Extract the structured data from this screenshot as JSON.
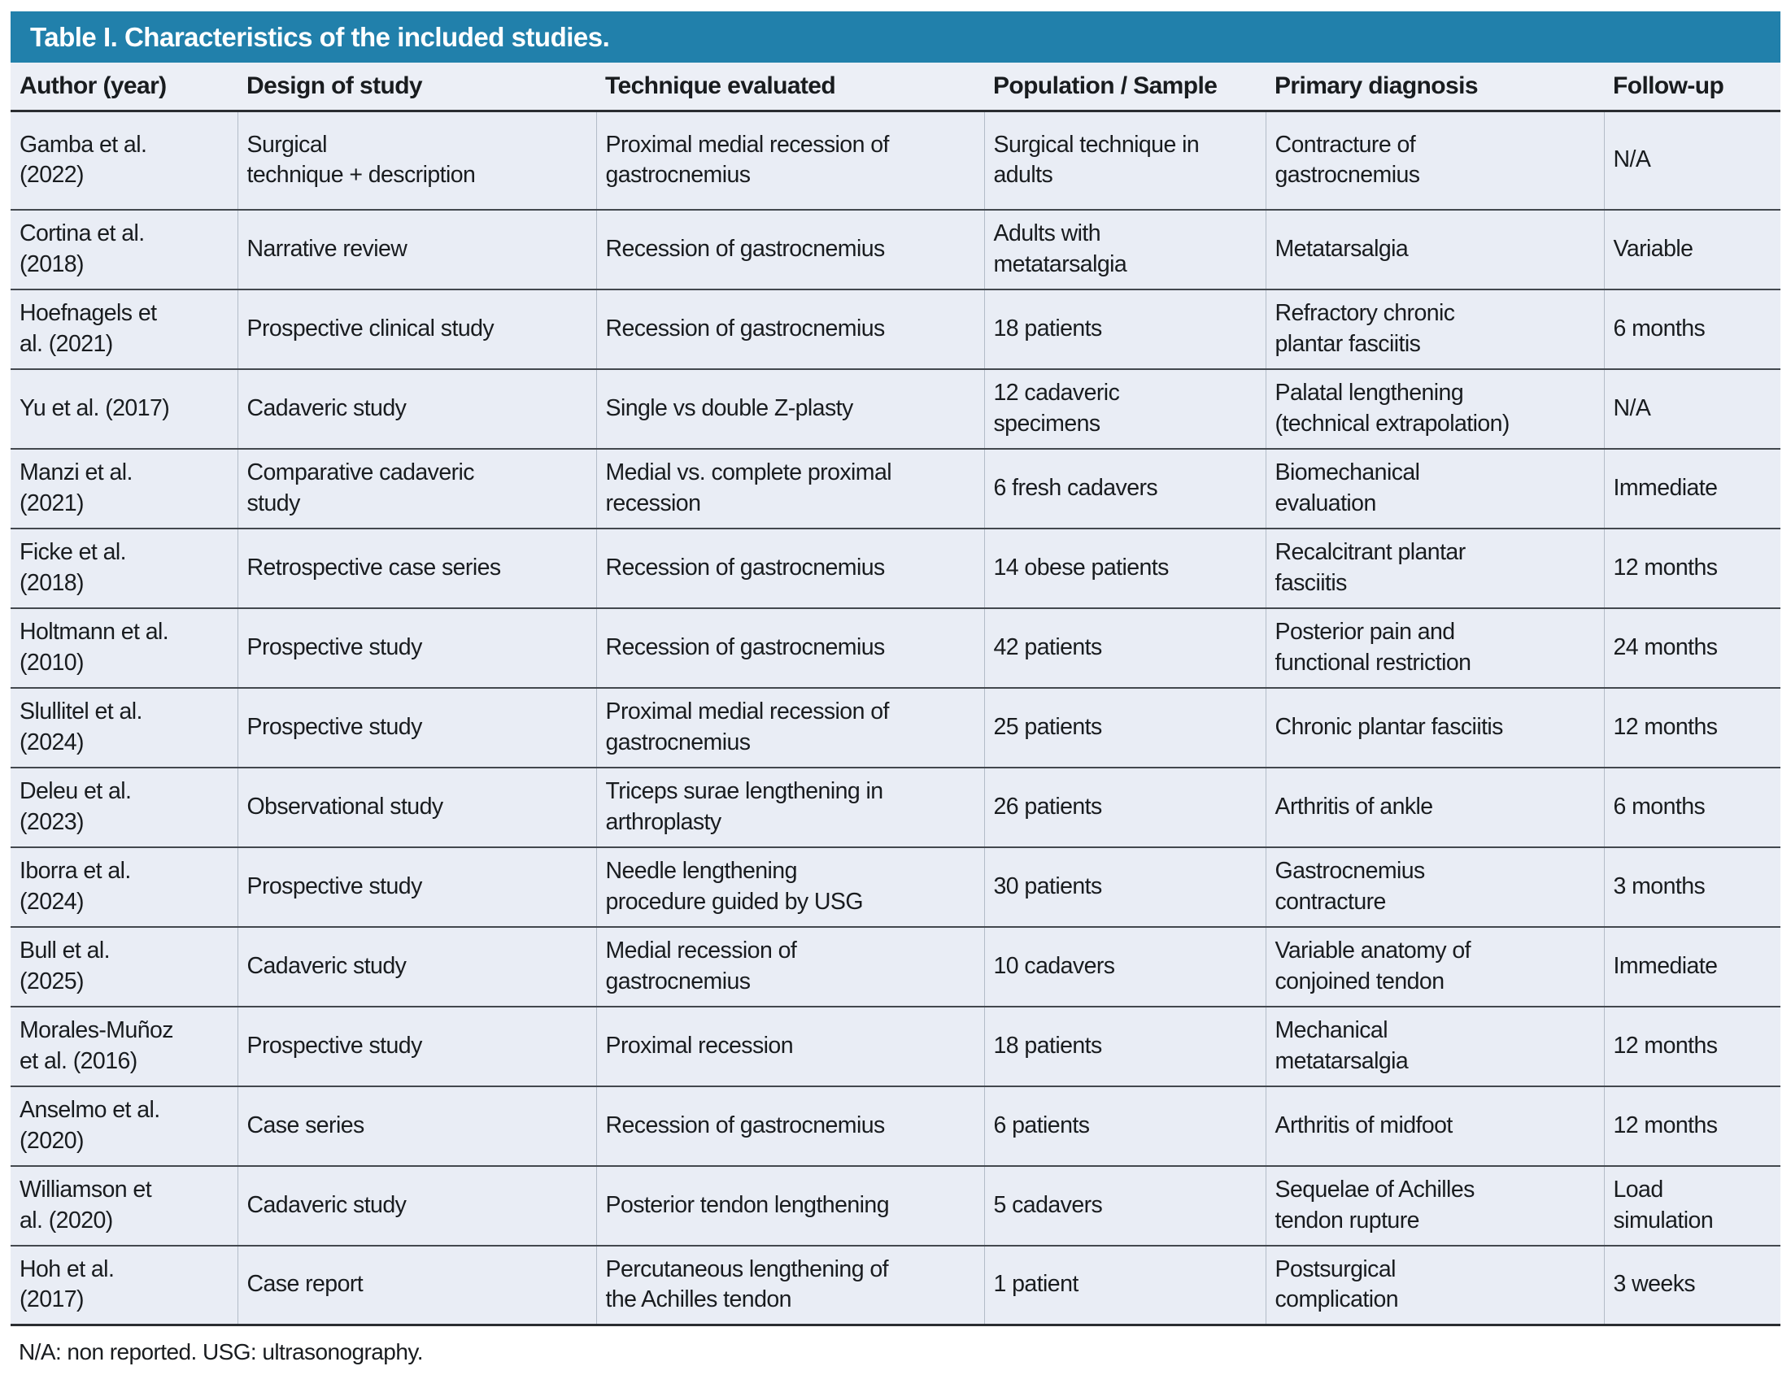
{
  "title": "Table I. Characteristics of the included studies.",
  "footnote": "N/A: non reported. USG: ultrasonography.",
  "colors": {
    "accent": "#2180ab",
    "header_bg": "#eceff6",
    "row_bg": "#e9edf5",
    "title_text": "#ffffff",
    "body_text": "#191c1f"
  },
  "table": {
    "columns": [
      "Author (year)",
      "Design of study",
      "Technique evaluated",
      "Population / Sample",
      "Primary diagnosis",
      "Follow-up"
    ],
    "column_keys": [
      "author-year",
      "design-of-study",
      "technique-evaluated",
      "population-sample",
      "primary-diagnosis",
      "follow-up"
    ],
    "rows": [
      [
        "Gamba et al.\n(2022)",
        "Surgical\ntechnique + description",
        "Proximal medial recession of\ngastrocnemius",
        "Surgical technique in\nadults",
        "Contracture of\ngastrocnemius",
        "N/A"
      ],
      [
        "Cortina et al.\n(2018)",
        "Narrative review",
        "Recession of gastrocnemius",
        "Adults with\nmetatarsalgia",
        "Metatarsalgia",
        "Variable"
      ],
      [
        "Hoefnagels et\nal. (2021)",
        "Prospective clinical study",
        "Recession of gastrocnemius",
        "18 patients",
        "Refractory chronic\nplantar fasciitis",
        "6 months"
      ],
      [
        "Yu et al. (2017)",
        "Cadaveric study",
        "Single vs double Z-plasty",
        "12 cadaveric\nspecimens",
        "Palatal lengthening\n(technical extrapolation)",
        "N/A"
      ],
      [
        "Manzi et al.\n(2021)",
        "Comparative cadaveric\nstudy",
        "Medial vs. complete proximal\nrecession",
        "6 fresh cadavers",
        "Biomechanical\nevaluation",
        "Immediate"
      ],
      [
        "Ficke et al.\n(2018)",
        "Retrospective case series",
        "Recession of gastrocnemius",
        "14 obese patients",
        "Recalcitrant plantar\nfasciitis",
        "12 months"
      ],
      [
        "Holtmann et al.\n(2010)",
        "Prospective study",
        "Recession of gastrocnemius",
        "42 patients",
        "Posterior pain and\nfunctional restriction",
        "24 months"
      ],
      [
        "Slullitel et al.\n(2024)",
        "Prospective study",
        "Proximal medial recession of\ngastrocnemius",
        "25 patients",
        "Chronic plantar fasciitis",
        "12 months"
      ],
      [
        "Deleu et al.\n(2023)",
        "Observational study",
        "Triceps surae lengthening in\narthroplasty",
        "26 patients",
        "Arthritis of ankle",
        "6 months"
      ],
      [
        "Iborra et al.\n(2024)",
        "Prospective study",
        "Needle lengthening\nprocedure guided by USG",
        "30 patients",
        "Gastrocnemius\ncontracture",
        "3 months"
      ],
      [
        "Bull et al.\n(2025)",
        "Cadaveric study",
        "Medial recession of\ngastrocnemius",
        "10 cadavers",
        "Variable anatomy of\nconjoined tendon",
        "Immediate"
      ],
      [
        "Morales-Muñoz\net al. (2016)",
        "Prospective study",
        "Proximal recession",
        "18 patients",
        "Mechanical\nmetatarsalgia",
        "12 months"
      ],
      [
        "Anselmo et al.\n(2020)",
        "Case series",
        "Recession of gastrocnemius",
        "6 patients",
        "Arthritis of midfoot",
        "12 months"
      ],
      [
        "Williamson et\nal. (2020)",
        "Cadaveric study",
        "Posterior tendon lengthening",
        "5 cadavers",
        "Sequelae of Achilles\ntendon rupture",
        "Load\nsimulation"
      ],
      [
        "Hoh et al.\n(2017)",
        "Case report",
        "Percutaneous lengthening of\nthe Achilles tendon",
        "1 patient",
        "Postsurgical\ncomplication",
        "3 weeks"
      ]
    ]
  }
}
